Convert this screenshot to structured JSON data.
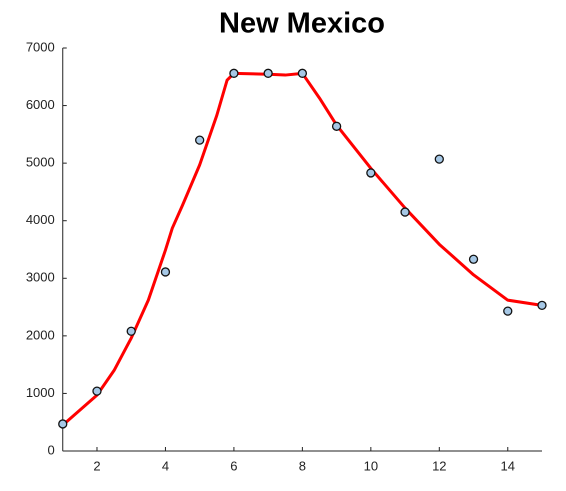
{
  "chart_data": {
    "type": "scatter",
    "title": "New Mexico",
    "xlim": [
      1,
      15
    ],
    "xticks": [
      2,
      4,
      6,
      8,
      10,
      12,
      14
    ],
    "ylim": [
      0,
      7000
    ],
    "yticks": [
      0,
      1000,
      2000,
      3000,
      4000,
      5000,
      6000,
      7000
    ],
    "series": [
      {
        "style": "markers",
        "color": "#a6c8e6",
        "x": [
          1,
          2,
          3,
          4,
          5,
          6,
          7,
          8,
          9,
          10,
          11,
          12,
          13,
          14,
          15
        ],
        "values": [
          470,
          1040,
          2080,
          3110,
          5400,
          6560,
          6560,
          6560,
          5640,
          4830,
          4150,
          5070,
          3330,
          2430,
          2530
        ]
      },
      {
        "style": "line",
        "color": "#ff0000",
        "x": [
          1,
          1.5,
          2,
          2.5,
          3,
          3.5,
          4,
          4.2,
          4.5,
          5,
          5.5,
          5.8,
          6,
          7,
          7.5,
          8,
          8.5,
          9,
          10,
          11,
          12,
          13,
          14,
          15
        ],
        "values": [
          450,
          710,
          970,
          1400,
          1960,
          2620,
          3490,
          3870,
          4270,
          4970,
          5830,
          6440,
          6560,
          6545,
          6530,
          6560,
          6130,
          5660,
          4910,
          4220,
          3590,
          3060,
          2620,
          2530
        ]
      }
    ]
  }
}
